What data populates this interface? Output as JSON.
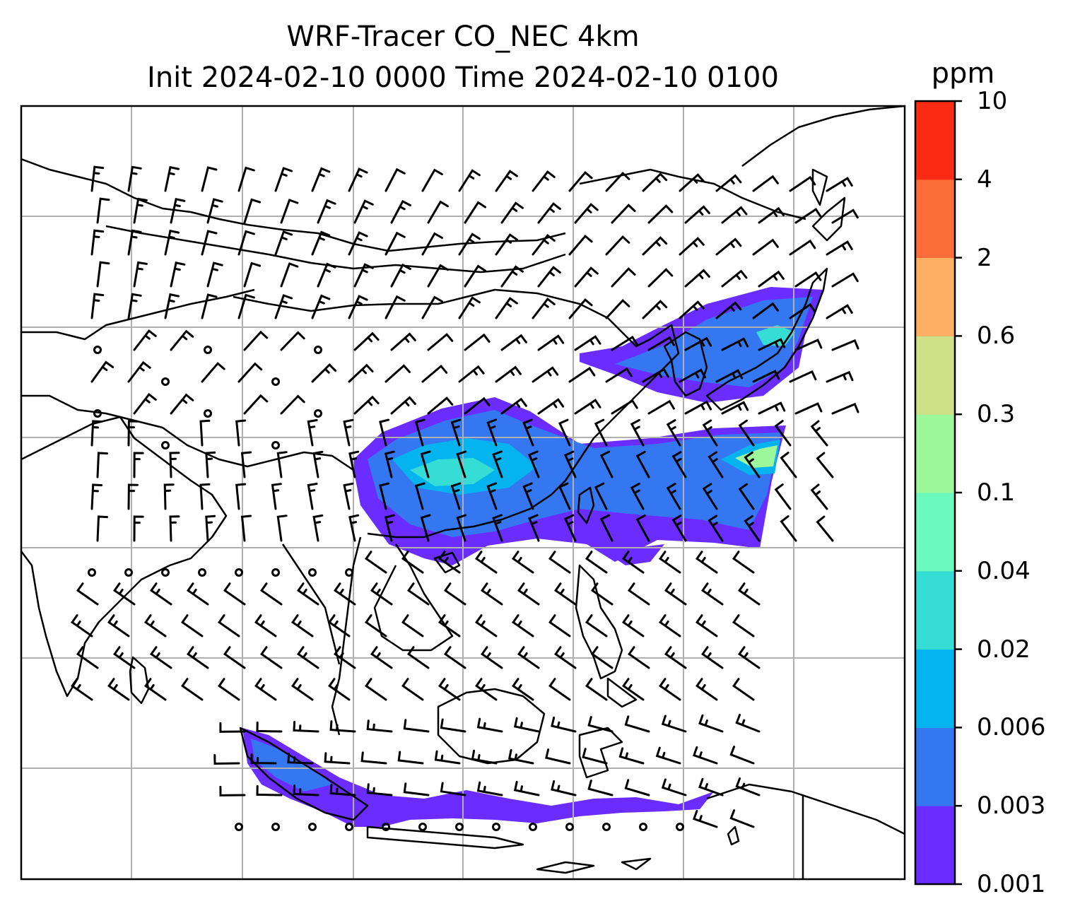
{
  "title": {
    "line1": "WRF-Tracer CO_NEC 4km",
    "line2": "Init 2024-02-10 0000 Time 2024-02-10 0100"
  },
  "colorbar": {
    "unit": "ppm",
    "ticks": [
      "0.001",
      "0.003",
      "0.006",
      "0.02",
      "0.04",
      "0.1",
      "0.3",
      "0.6",
      "2",
      "4",
      "10"
    ],
    "colors": [
      "#6a2cff",
      "#3577f0",
      "#05b4ee",
      "#35ddd4",
      "#6bf9bd",
      "#9bf99b",
      "#cfe087",
      "#fdb063",
      "#fd6d3a",
      "#fb2a13"
    ]
  },
  "legend_colors": {
    "coast": "#000000",
    "grid": "#b0b0b0"
  }
}
